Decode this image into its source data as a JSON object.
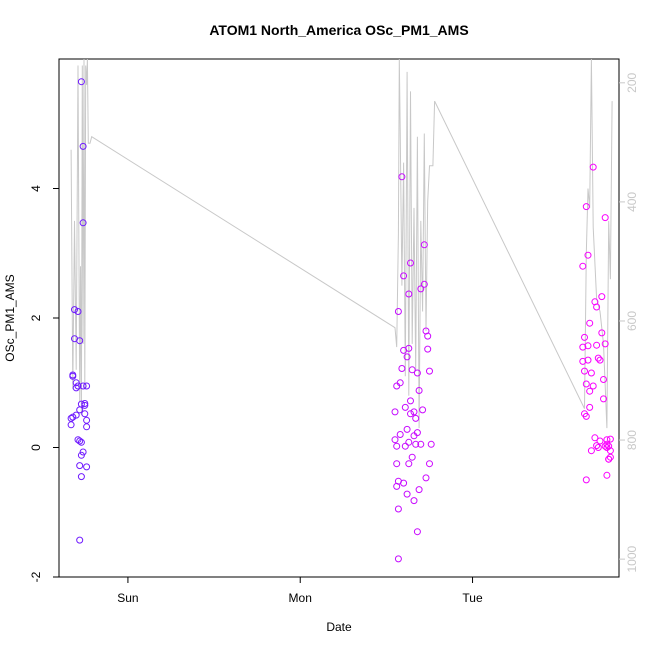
{
  "chart_data": {
    "type": "scatter",
    "title": "ATOM1 North_America OSc_PM1_AMS",
    "xlabel": "Date",
    "ylabel": "OSc_PM1_AMS",
    "ylim": [
      -2.0,
      6.0
    ],
    "y_ticks": [
      -2,
      0,
      2,
      4
    ],
    "x_range_days": [
      -0.4,
      2.85
    ],
    "x_ticks": [
      {
        "day": 0,
        "label": "Sun"
      },
      {
        "day": 1,
        "label": "Mon"
      },
      {
        "day": 2,
        "label": "Tue"
      }
    ],
    "y2_range": [
      1030,
      160
    ],
    "y2_ticks": [
      200,
      400,
      600,
      800,
      1000
    ],
    "colors": {
      "axis": "#000000",
      "right_axis": "#c8c8c8",
      "line": "#c8c8c8",
      "point_start": "#6a1bff",
      "point_end": "#ff00ff"
    },
    "line_series": [
      [
        -0.33,
        4.6
      ],
      [
        -0.32,
        0.9
      ],
      [
        -0.31,
        3.5
      ],
      [
        -0.3,
        1.2
      ],
      [
        -0.29,
        5.9
      ],
      [
        -0.28,
        0.7
      ],
      [
        -0.275,
        2.8
      ],
      [
        -0.27,
        0.5
      ],
      [
        -0.265,
        5.9
      ],
      [
        -0.26,
        1.6
      ],
      [
        -0.255,
        6.0
      ],
      [
        -0.25,
        0.9
      ],
      [
        -0.245,
        5.9
      ],
      [
        -0.24,
        5.6
      ],
      [
        -0.235,
        6.0
      ],
      [
        -0.23,
        4.7
      ],
      [
        -0.22,
        4.7
      ],
      [
        -0.21,
        4.8
      ],
      [
        1.55,
        1.85
      ],
      [
        1.56,
        1.55
      ],
      [
        1.57,
        3.3
      ],
      [
        1.575,
        6.0
      ],
      [
        1.58,
        4.9
      ],
      [
        1.59,
        2.5
      ],
      [
        1.6,
        4.4
      ],
      [
        1.61,
        1.1
      ],
      [
        1.62,
        5.8
      ],
      [
        1.63,
        0.8
      ],
      [
        1.64,
        5.5
      ],
      [
        1.65,
        1.6
      ],
      [
        1.66,
        3.7
      ],
      [
        1.67,
        1.2
      ],
      [
        1.68,
        4.8
      ],
      [
        1.69,
        0.3
      ],
      [
        1.7,
        3.5
      ],
      [
        1.71,
        2.1
      ],
      [
        1.72,
        4.85
      ],
      [
        1.73,
        1.8
      ],
      [
        1.74,
        3.8
      ],
      [
        1.75,
        4.35
      ],
      [
        1.76,
        4.35
      ],
      [
        1.77,
        4.35
      ],
      [
        1.78,
        5.35
      ],
      [
        2.65,
        0.6
      ],
      [
        2.66,
        3.0
      ],
      [
        2.67,
        4.0
      ],
      [
        2.68,
        3.7
      ],
      [
        2.69,
        6.0
      ],
      [
        2.7,
        3.4
      ],
      [
        2.72,
        2.3
      ],
      [
        2.74,
        2.1
      ],
      [
        2.76,
        1.6
      ],
      [
        2.78,
        0.3
      ],
      [
        2.79,
        3.5
      ],
      [
        2.8,
        2.6
      ],
      [
        2.81,
        5.35
      ]
    ],
    "series": [
      {
        "x": [
          -0.33,
          -0.33,
          -0.32,
          -0.32,
          -0.32,
          -0.31,
          -0.31,
          -0.3,
          -0.3,
          -0.3,
          -0.29,
          -0.29,
          -0.29,
          -0.28,
          -0.28,
          -0.28,
          -0.28,
          -0.28,
          -0.27,
          -0.27,
          -0.27,
          -0.27,
          -0.27,
          -0.26,
          -0.26,
          -0.26,
          -0.26,
          -0.25,
          -0.25,
          -0.25,
          -0.24,
          -0.24,
          -0.24,
          -0.24
        ],
        "y": [
          0.45,
          0.35,
          0.47,
          1.1,
          1.12,
          2.13,
          1.68,
          1.0,
          0.5,
          0.92,
          2.1,
          0.12,
          0.95,
          0.1,
          0.58,
          1.65,
          -0.28,
          -1.43,
          0.67,
          0.08,
          -0.12,
          -0.45,
          5.65,
          4.65,
          0.95,
          3.47,
          -0.07,
          0.68,
          0.52,
          0.65,
          0.95,
          0.42,
          0.32,
          -0.3
        ]
      },
      {
        "x": [
          1.55,
          1.55,
          1.56,
          1.56,
          1.56,
          1.56,
          1.57,
          1.57,
          1.57,
          1.57,
          1.58,
          1.58,
          1.59,
          1.59,
          1.6,
          1.6,
          1.6,
          1.61,
          1.61,
          1.62,
          1.62,
          1.62,
          1.63,
          1.63,
          1.63,
          1.63,
          1.64,
          1.64,
          1.64,
          1.65,
          1.65,
          1.66,
          1.66,
          1.66,
          1.67,
          1.67,
          1.68,
          1.68,
          1.68,
          1.69,
          1.69,
          1.7,
          1.7,
          1.71,
          1.72,
          1.72,
          1.73,
          1.73,
          1.74,
          1.74,
          1.75,
          1.75,
          1.76
        ],
        "y": [
          0.55,
          0.12,
          0.02,
          0.95,
          -0.25,
          -0.6,
          -0.52,
          -0.95,
          -1.72,
          2.1,
          1.0,
          0.2,
          1.22,
          4.18,
          2.65,
          1.5,
          -0.55,
          0.62,
          0.02,
          1.4,
          0.28,
          -0.72,
          1.53,
          2.37,
          0.08,
          -0.25,
          2.85,
          0.72,
          0.52,
          1.2,
          -0.15,
          0.55,
          0.18,
          -0.82,
          0.45,
          0.05,
          -1.3,
          1.15,
          0.23,
          0.88,
          -0.65,
          2.45,
          0.05,
          0.58,
          3.13,
          2.52,
          1.8,
          -0.47,
          1.72,
          1.52,
          1.18,
          -0.25,
          0.05
        ]
      },
      {
        "x": [
          2.64,
          2.64,
          2.64,
          2.65,
          2.65,
          2.65,
          2.66,
          2.66,
          2.66,
          2.66,
          2.67,
          2.67,
          2.67,
          2.68,
          2.68,
          2.68,
          2.69,
          2.69,
          2.7,
          2.7,
          2.71,
          2.71,
          2.72,
          2.72,
          2.72,
          2.73,
          2.73,
          2.74,
          2.74,
          2.75,
          2.75,
          2.76,
          2.76,
          2.77,
          2.77,
          2.77,
          2.78,
          2.78,
          2.78,
          2.78,
          2.79,
          2.79,
          2.79,
          2.8,
          2.8,
          2.8
        ],
        "y": [
          2.8,
          1.55,
          1.33,
          1.18,
          1.7,
          0.52,
          3.72,
          0.98,
          0.48,
          -0.5,
          2.97,
          1.57,
          1.35,
          1.92,
          0.87,
          0.62,
          1.15,
          -0.05,
          0.95,
          4.33,
          2.25,
          0.15,
          2.17,
          0.03,
          1.58,
          1.38,
          0.0,
          1.35,
          0.1,
          1.77,
          2.33,
          1.05,
          0.75,
          3.55,
          1.6,
          0.02,
          0.12,
          -0.43,
          0.05,
          0.0,
          -0.18,
          -0.18,
          0.02,
          0.13,
          -0.05,
          -0.15
        ]
      }
    ]
  }
}
